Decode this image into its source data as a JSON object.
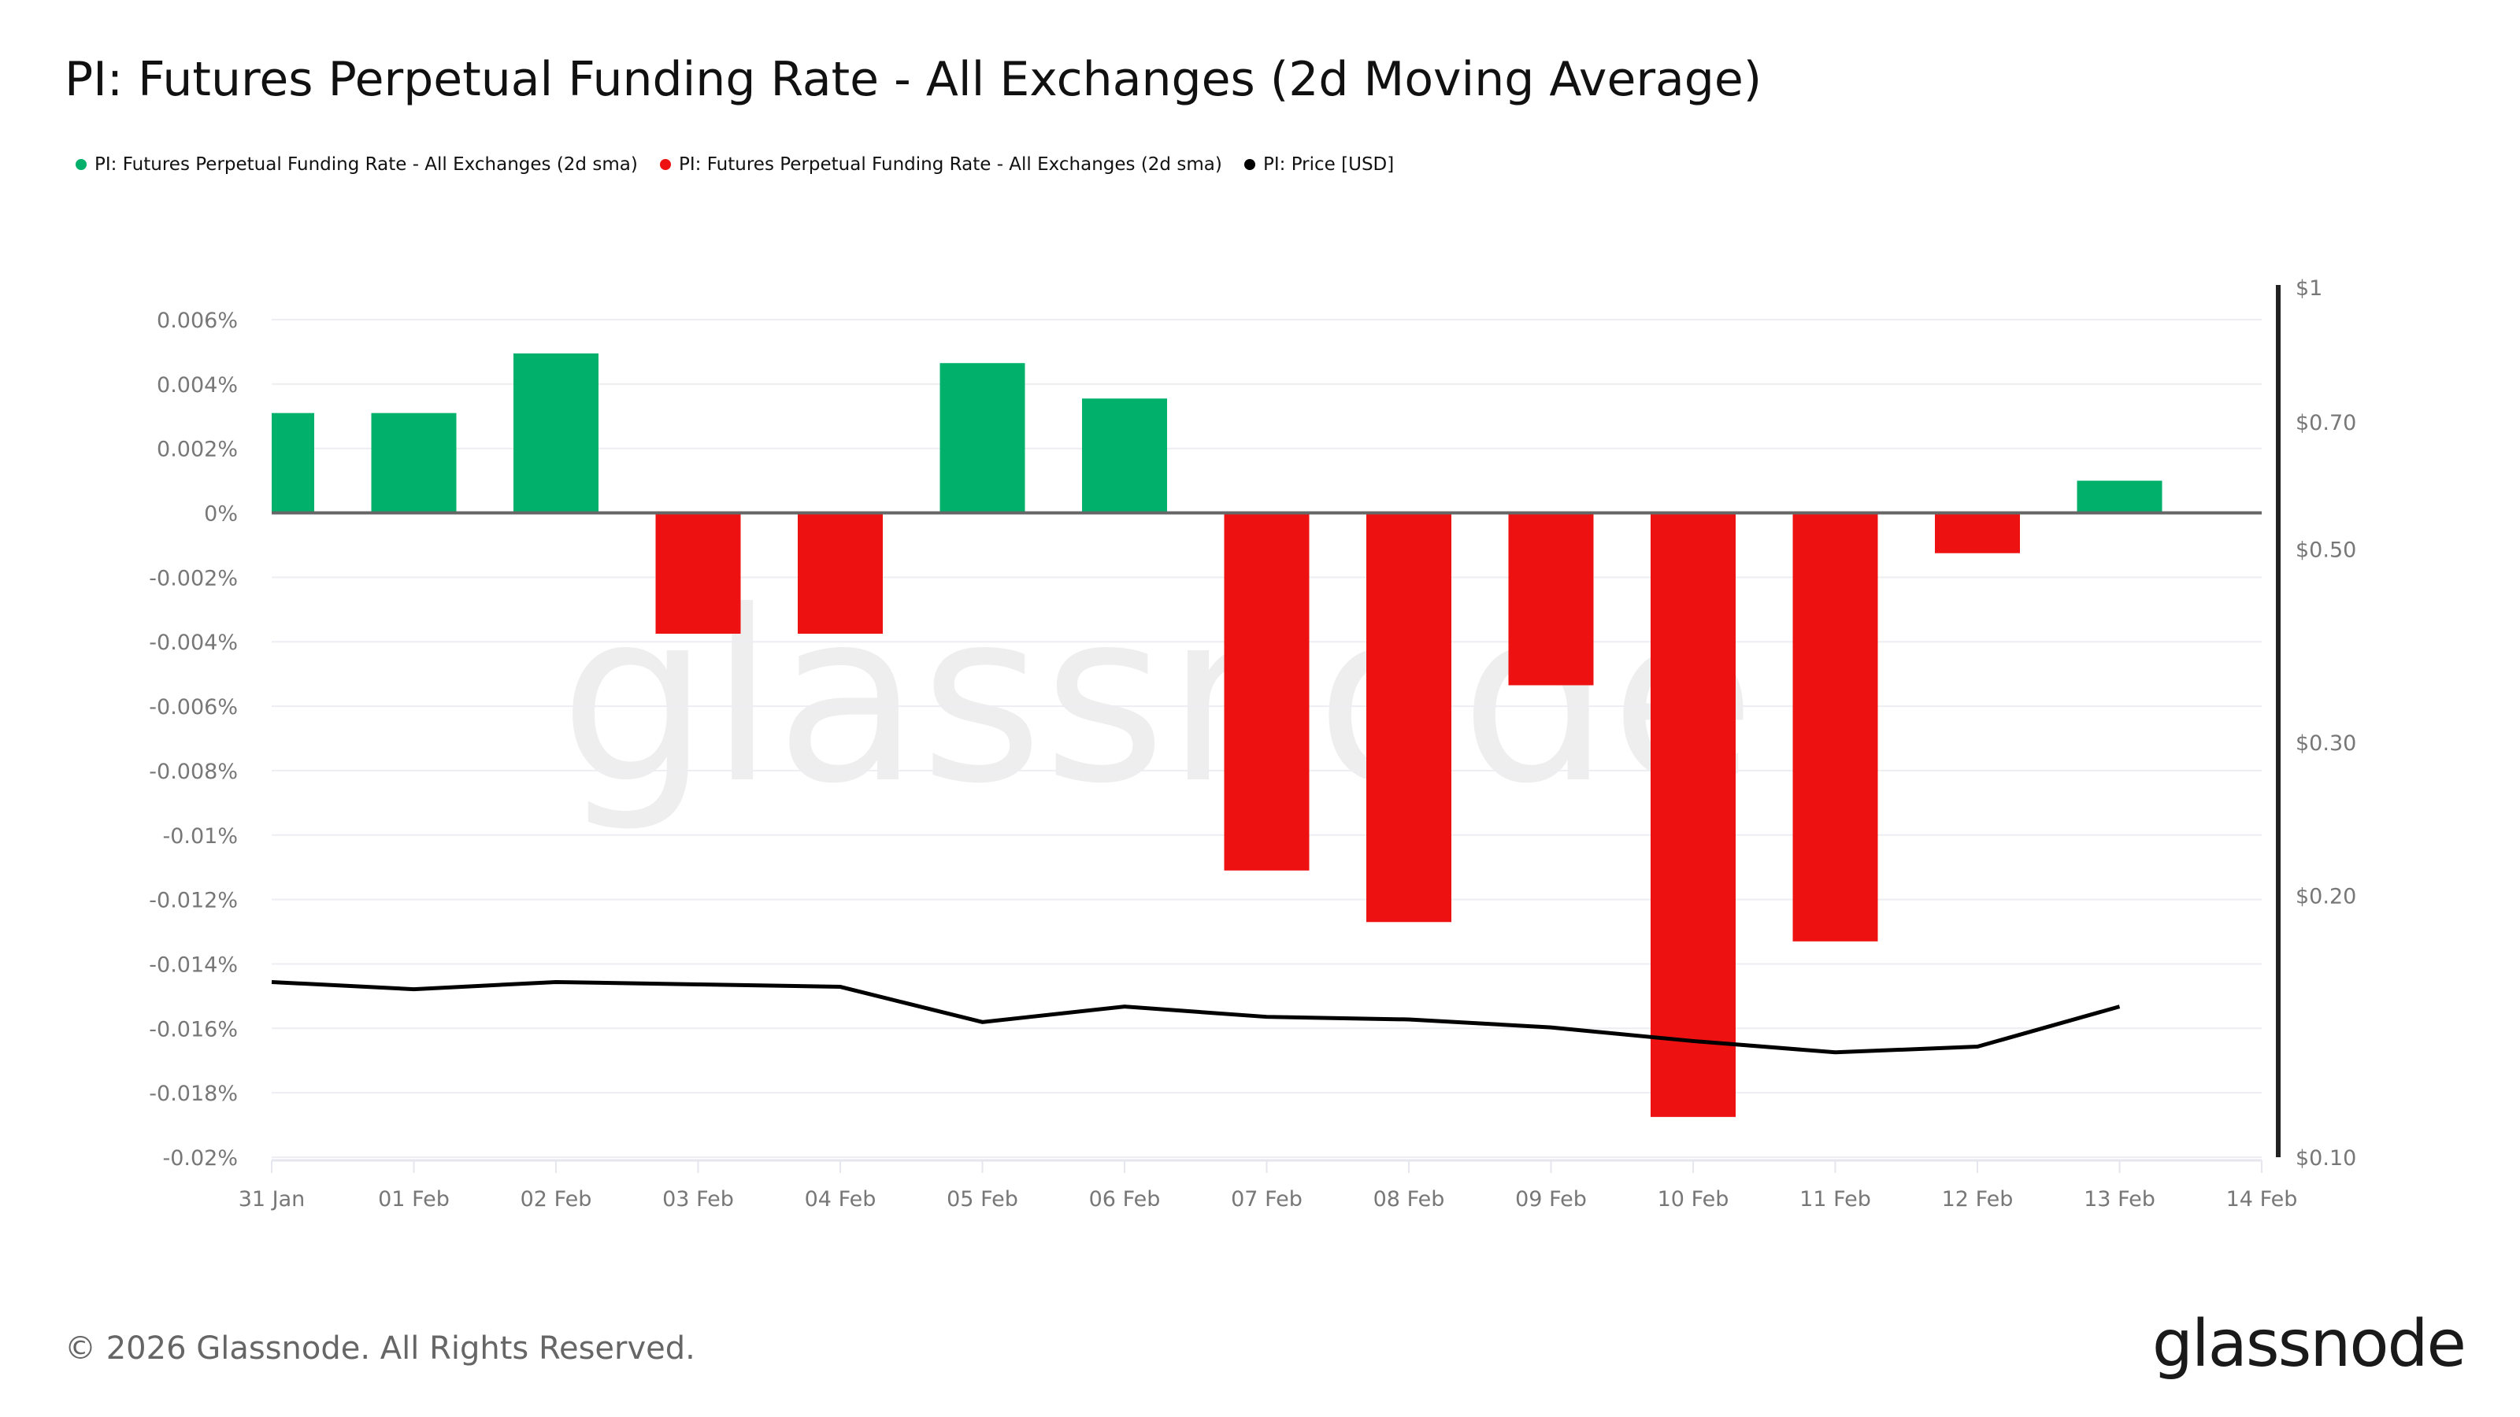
{
  "title": "PI: Futures Perpetual Funding Rate - All Exchanges (2d Moving Average)",
  "legend": [
    {
      "label": "PI: Futures Perpetual Funding Rate - All Exchanges (2d sma)",
      "color": "#00B06B"
    },
    {
      "label": "PI: Futures Perpetual Funding Rate - All Exchanges (2d sma)",
      "color": "#EE1111"
    },
    {
      "label": "PI: Price [USD]",
      "color": "#000000"
    }
  ],
  "footer": "© 2026 Glassnode. All Rights Reserved.",
  "logo": "glassnode",
  "watermark": "glassnode",
  "chart_data": {
    "type": "bar",
    "title": "PI: Futures Perpetual Funding Rate - All Exchanges (2d Moving Average)",
    "categories": [
      "31 Jan",
      "01 Feb",
      "02 Feb",
      "03 Feb",
      "04 Feb",
      "05 Feb",
      "06 Feb",
      "07 Feb",
      "08 Feb",
      "09 Feb",
      "10 Feb",
      "11 Feb",
      "12 Feb",
      "13 Feb"
    ],
    "x_tick_labels": [
      "31 Jan",
      "01 Feb",
      "02 Feb",
      "03 Feb",
      "04 Feb",
      "05 Feb",
      "06 Feb",
      "07 Feb",
      "08 Feb",
      "09 Feb",
      "10 Feb",
      "11 Feb",
      "12 Feb",
      "13 Feb",
      "14 Feb"
    ],
    "funding_rate_pct": [
      0.0031,
      0.0031,
      0.00495,
      -0.00375,
      -0.00375,
      0.00465,
      0.00355,
      -0.0111,
      -0.0127,
      -0.00535,
      -0.01875,
      -0.0133,
      -0.00125,
      0.001
    ],
    "positive_color": "#00B06B",
    "negative_color": "#EE1111",
    "price_usd": [
      0.159,
      0.156,
      0.159,
      0.158,
      0.157,
      0.143,
      0.149,
      0.145,
      0.144,
      0.141,
      0.136,
      0.132,
      0.134,
      0.149
    ],
    "price_color": "#000000",
    "y_left": {
      "range": [
        -0.02,
        0.006
      ],
      "ticks": [
        0.006,
        0.004,
        0.002,
        0,
        -0.002,
        -0.004,
        -0.006,
        -0.008,
        -0.01,
        -0.012,
        -0.014,
        -0.016,
        -0.018,
        -0.02
      ],
      "tick_labels": [
        "0.006%",
        "0.004%",
        "0.002%",
        "0%",
        "-0.002%",
        "-0.004%",
        "-0.006%",
        "-0.008%",
        "-0.01%",
        "-0.012%",
        "-0.014%",
        "-0.016%",
        "-0.018%",
        "-0.02%"
      ]
    },
    "y_right": {
      "scale": "log",
      "range": [
        0.1,
        1
      ],
      "ticks": [
        1,
        0.7,
        0.5,
        0.3,
        0.2,
        0.1
      ],
      "tick_labels": [
        "$1",
        "$0.70",
        "$0.50",
        "$0.30",
        "$0.20",
        "$0.10"
      ]
    },
    "grid": true
  }
}
